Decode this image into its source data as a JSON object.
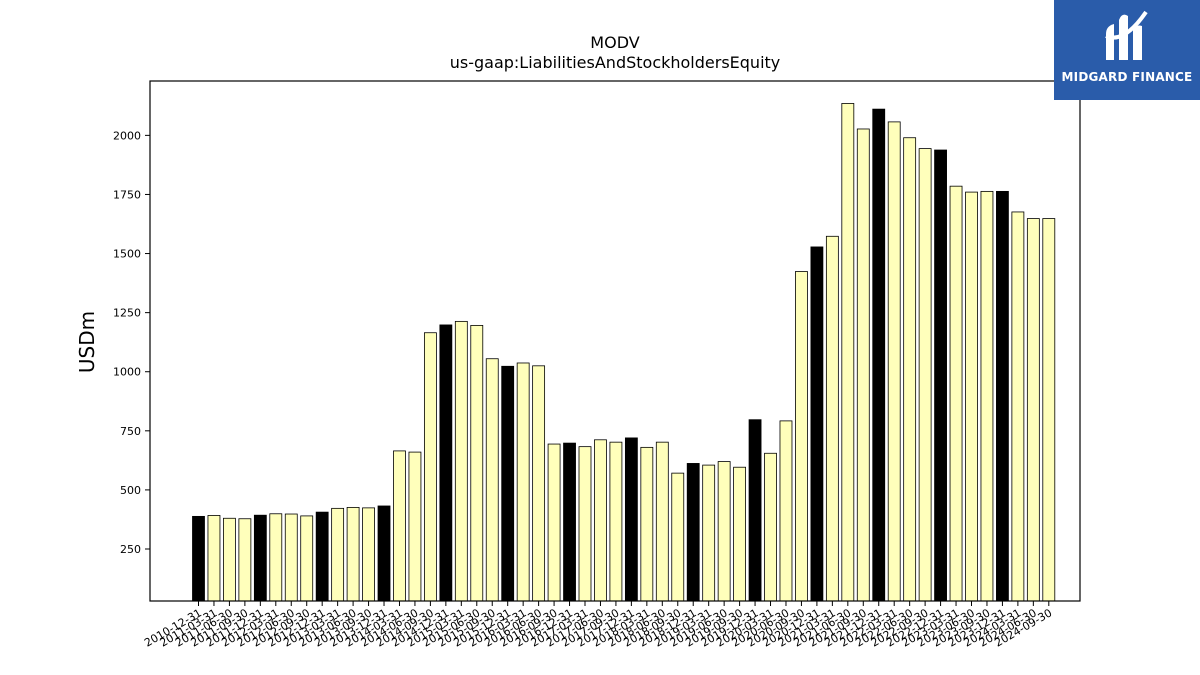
{
  "chart_data": {
    "type": "bar",
    "title": "MODV",
    "subtitle": "us-gaap:LiabilitiesAndStockholdersEquity",
    "xlabel": "",
    "ylabel": "USDm",
    "ylim": [
      30,
      2230
    ],
    "yticks": [
      250,
      500,
      750,
      1000,
      1250,
      1500,
      1750,
      2000
    ],
    "grid": false,
    "colors": {
      "q4": "#000000",
      "other": "#ffffbb",
      "edge": "#000000"
    },
    "categories": [
      "2010-12-31",
      "2011-03-31",
      "2011-06-30",
      "2011-09-30",
      "2011-12-31",
      "2012-03-31",
      "2012-06-30",
      "2012-09-30",
      "2012-12-31",
      "2013-03-31",
      "2013-06-30",
      "2013-09-30",
      "2013-12-31",
      "2014-03-31",
      "2014-06-30",
      "2014-09-30",
      "2014-12-31",
      "2015-03-31",
      "2015-06-30",
      "2015-09-30",
      "2015-12-31",
      "2016-03-31",
      "2016-06-30",
      "2016-09-30",
      "2016-12-31",
      "2017-03-31",
      "2017-06-30",
      "2017-09-30",
      "2017-12-31",
      "2018-03-31",
      "2018-06-30",
      "2018-09-30",
      "2018-12-31",
      "2019-03-31",
      "2019-06-30",
      "2019-09-30",
      "2019-12-31",
      "2020-03-31",
      "2020-06-30",
      "2020-09-30",
      "2020-12-31",
      "2021-03-31",
      "2021-06-30",
      "2021-09-30",
      "2021-12-31",
      "2022-03-31",
      "2022-06-30",
      "2022-09-30",
      "2022-12-31",
      "2023-03-31",
      "2023-06-30",
      "2023-09-30",
      "2023-12-31",
      "2024-03-31",
      "2024-06-30",
      "2024-09-30"
    ],
    "values": [
      388,
      392,
      380,
      378,
      393,
      399,
      398,
      390,
      406,
      422,
      426,
      424,
      432,
      665,
      660,
      1165,
      1198,
      1213,
      1196,
      1055,
      1023,
      1037,
      1025,
      694,
      698,
      683,
      712,
      702,
      720,
      680,
      702,
      571,
      612,
      605,
      620,
      596,
      797,
      655,
      792,
      1424,
      1528,
      1573,
      2135,
      2027,
      2111,
      2057,
      1990,
      1944,
      1938,
      1785,
      1760,
      1763,
      1763,
      1676,
      1648,
      1648
    ]
  },
  "logo": {
    "text": "MIDGARD FINANCE",
    "icon": "midgard-logo-icon"
  }
}
